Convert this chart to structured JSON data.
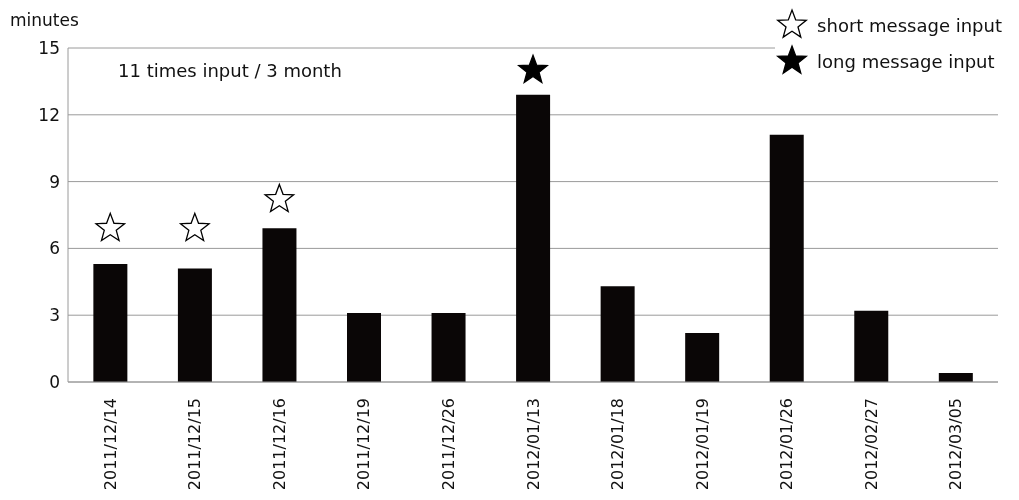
{
  "chart_data": {
    "type": "bar",
    "ylabel": "minutes",
    "annotations": [
      "11 times input / 3 month"
    ],
    "categories": [
      "2011/12/14",
      "2011/12/15",
      "2011/12/16",
      "2011/12/19",
      "2011/12/26",
      "2012/01/13",
      "2012/01/18",
      "2012/01/19",
      "2012/01/26",
      "2012/02/27",
      "2012/03/05"
    ],
    "series": [
      {
        "color": "#0a0606",
        "values": [
          5.3,
          5.1,
          6.9,
          3.1,
          3.1,
          12.9,
          4.3,
          2.2,
          11.1,
          3.2,
          0.4
        ]
      },
      {
        "type": "scatter",
        "name": "short message input",
        "color": "#ffffff",
        "x": [
          "2011/12/14",
          "2011/12/15",
          "2011/12/16"
        ],
        "values": [
          6.9,
          6.9,
          8.2
        ]
      },
      {
        "type": "scatter",
        "name": "long message input",
        "color": "#000000",
        "x": [
          "2012/01/13"
        ],
        "values": [
          14.0
        ]
      }
    ],
    "marker": "star",
    "ylim": [
      0,
      15
    ],
    "yticks": [
      0,
      3,
      6,
      9,
      12,
      15
    ],
    "grid": "y",
    "legend": "top right"
  }
}
